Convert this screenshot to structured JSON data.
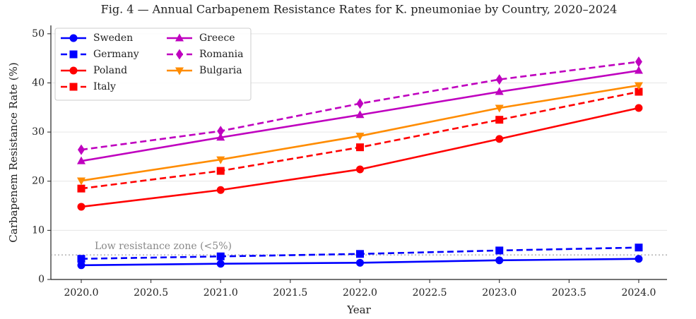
{
  "chart_data": {
    "type": "line",
    "title": "Fig. 4 — Annual Carbapenem Resistance Rates for K. pneumoniae by Country, 2020–2024",
    "x_label": "Year",
    "y_label": "Carbapenem Resistance Rate (%)",
    "x": [
      2020,
      2021,
      2022,
      2023,
      2024
    ],
    "series": [
      {
        "name": "Sweden",
        "color": "#0000ff",
        "dash": false,
        "marker": "circle",
        "values": [
          2.9,
          3.2,
          3.4,
          3.9,
          4.2
        ]
      },
      {
        "name": "Germany",
        "color": "#0000ff",
        "dash": true,
        "marker": "square",
        "values": [
          4.2,
          4.7,
          5.2,
          5.9,
          6.5
        ]
      },
      {
        "name": "Poland",
        "color": "#ff0000",
        "dash": false,
        "marker": "circle",
        "values": [
          14.8,
          18.2,
          22.4,
          28.6,
          34.9
        ]
      },
      {
        "name": "Italy",
        "color": "#ff0000",
        "dash": true,
        "marker": "square",
        "values": [
          18.5,
          22.1,
          26.9,
          32.5,
          38.2
        ]
      },
      {
        "name": "Greece",
        "color": "#bf00bf",
        "dash": false,
        "marker": "triangle-up",
        "values": [
          24.1,
          28.9,
          33.5,
          38.2,
          42.5
        ]
      },
      {
        "name": "Romania",
        "color": "#bf00bf",
        "dash": true,
        "marker": "diamond",
        "values": [
          26.4,
          30.2,
          35.8,
          40.7,
          44.3
        ]
      },
      {
        "name": "Bulgaria",
        "color": "#ff8c00",
        "dash": false,
        "marker": "triangle-down",
        "values": [
          20.1,
          24.4,
          29.2,
          34.9,
          39.5
        ]
      }
    ],
    "threshold": {
      "value": 5,
      "label": "Low resistance zone (<5%)"
    },
    "xlim": [
      2019.782,
      2024.203
    ],
    "ylim": [
      0,
      51.7
    ],
    "xticks": [
      {
        "value": 2020,
        "label": "2020.0"
      },
      {
        "value": 2020.5,
        "label": "2020.5"
      },
      {
        "value": 2021,
        "label": "2021.0"
      },
      {
        "value": 2021.5,
        "label": "2021.5"
      },
      {
        "value": 2022,
        "label": "2022.0"
      },
      {
        "value": 2022.5,
        "label": "2022.5"
      },
      {
        "value": 2023,
        "label": "2023.0"
      },
      {
        "value": 2023.5,
        "label": "2023.5"
      },
      {
        "value": 2024,
        "label": "2024.0"
      }
    ],
    "yticks": [
      0,
      10,
      20,
      30,
      40,
      50
    ],
    "grid": true,
    "legend": "upper left"
  }
}
